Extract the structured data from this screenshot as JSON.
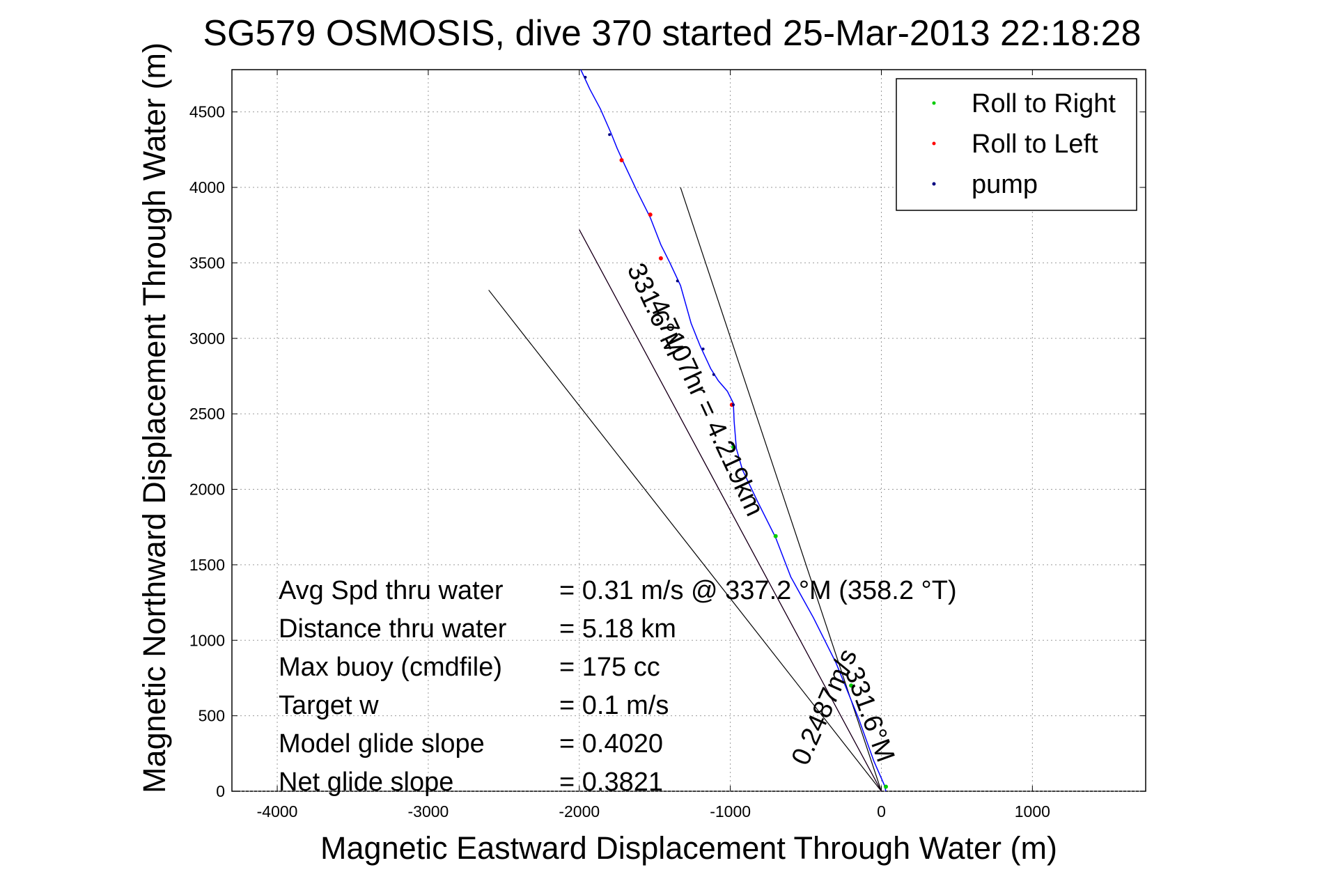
{
  "chart_data": {
    "type": "line",
    "title": "SG579 OSMOSIS, dive 370 started 25-Mar-2013 22:18:28",
    "xlabel": "Magnetic Eastward Displacement Through Water (m)",
    "ylabel": "Magnetic Northward Displacement Through Water (m)",
    "xlim": [
      -4300,
      1750
    ],
    "ylim": [
      0,
      4780
    ],
    "xticks": [
      -4000,
      -3000,
      -2000,
      -1000,
      0,
      1000
    ],
    "yticks": [
      0,
      500,
      1000,
      1500,
      2000,
      2500,
      3000,
      3500,
      4000,
      4500
    ],
    "grid": true,
    "legend_position": "top-right",
    "legend": [
      {
        "label": "Roll to Right",
        "color": "#00cc00"
      },
      {
        "label": "Roll to Left",
        "color": "#ff0000"
      },
      {
        "label": "pump",
        "color": "#000080"
      }
    ],
    "track": {
      "color": "#0000ff",
      "points": [
        [
          30,
          0
        ],
        [
          20,
          40
        ],
        [
          -50,
          200
        ],
        [
          -150,
          480
        ],
        [
          -300,
          850
        ],
        [
          -450,
          1150
        ],
        [
          -600,
          1420
        ],
        [
          -700,
          1680
        ],
        [
          -820,
          1920
        ],
        [
          -920,
          2130
        ],
        [
          -960,
          2270
        ],
        [
          -975,
          2450
        ],
        [
          -980,
          2570
        ],
        [
          -1020,
          2650
        ],
        [
          -1080,
          2720
        ],
        [
          -1130,
          2800
        ],
        [
          -1200,
          2950
        ],
        [
          -1260,
          3100
        ],
        [
          -1330,
          3350
        ],
        [
          -1400,
          3500
        ],
        [
          -1460,
          3620
        ],
        [
          -1530,
          3800
        ],
        [
          -1620,
          3980
        ],
        [
          -1700,
          4150
        ],
        [
          -1750,
          4260
        ],
        [
          -1790,
          4360
        ],
        [
          -1860,
          4520
        ],
        [
          -1930,
          4650
        ],
        [
          -1990,
          4780
        ]
      ]
    },
    "roll_right_points": [
      [
        30,
        30
      ],
      [
        -200,
        700
      ],
      [
        -700,
        1690
      ],
      [
        -980,
        2280
      ]
    ],
    "roll_left_points": [
      [
        -1720,
        4180
      ],
      [
        -1530,
        3820
      ],
      [
        -1460,
        3530
      ],
      [
        -990,
        2560
      ]
    ],
    "pump_points": [
      [
        -1960,
        4730
      ],
      [
        -1800,
        4350
      ],
      [
        -1350,
        3380
      ],
      [
        -1180,
        2930
      ],
      [
        -1110,
        2760
      ],
      [
        -985,
        2300
      ],
      [
        -980,
        2560
      ]
    ],
    "reference_lines": [
      {
        "from": [
          0,
          0
        ],
        "to": [
          -2600,
          3320
        ],
        "color": "#000000"
      },
      {
        "from": [
          0,
          0
        ],
        "to": [
          -1330,
          4000
        ],
        "color": "#000000"
      },
      {
        "from": [
          0,
          0
        ],
        "to": [
          -2000,
          3720
        ],
        "color": "#ff00ff"
      },
      {
        "from": [
          0,
          0
        ],
        "to": [
          -2000,
          3720
        ],
        "color": "#000000"
      }
    ],
    "direction_labels": [
      {
        "text": "4.7107hr = 4.219km",
        "color": "#000000"
      },
      {
        "text": "331.6°M",
        "color": "#000000"
      },
      {
        "text": "0.2487m/s",
        "color": "#000000"
      },
      {
        "text": "331.6°M",
        "color": "#000000"
      }
    ],
    "annotations": [
      {
        "label": "Avg Spd thru water",
        "value": "=  0.31 m/s @ 337.2 °M (358.2 °T)"
      },
      {
        "label": "Distance thru water",
        "value": "=  5.18 km"
      },
      {
        "label": "Max buoy (cmdfile)",
        "value": "= 175 cc"
      },
      {
        "label": "Target w",
        "value": "= 0.1 m/s"
      },
      {
        "label": "Model glide slope",
        "value": "= 0.4020"
      },
      {
        "label": "Net glide slope",
        "value": "= 0.3821"
      }
    ]
  }
}
